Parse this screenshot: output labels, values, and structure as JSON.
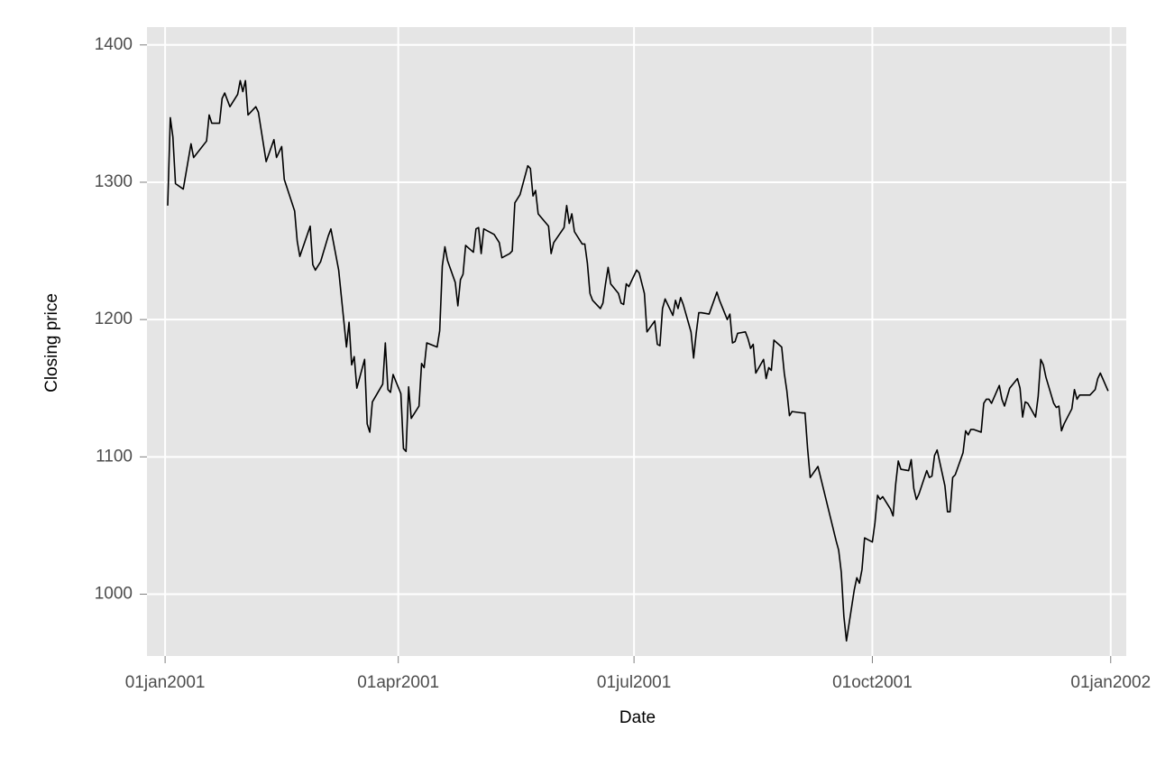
{
  "chart_data": {
    "type": "line",
    "xlabel": "Date",
    "ylabel": "Closing price",
    "color": "#000000",
    "grid": true,
    "xlim": [
      "2000-12-25",
      "2002-01-07"
    ],
    "ylim": [
      955,
      1413
    ],
    "xticks": [
      {
        "value": "2001-01-01",
        "label": "01jan2001"
      },
      {
        "value": "2001-04-01",
        "label": "01apr2001"
      },
      {
        "value": "2001-07-01",
        "label": "01jul2001"
      },
      {
        "value": "2001-10-01",
        "label": "01oct2001"
      },
      {
        "value": "2002-01-01",
        "label": "01jan2002"
      }
    ],
    "yticks": [
      1000,
      1100,
      1200,
      1300,
      1400
    ],
    "x": [
      "2001-01-02",
      "2001-01-03",
      "2001-01-04",
      "2001-01-05",
      "2001-01-08",
      "2001-01-11",
      "2001-01-12",
      "2001-01-17",
      "2001-01-18",
      "2001-01-19",
      "2001-01-22",
      "2001-01-23",
      "2001-01-24",
      "2001-01-26",
      "2001-01-29",
      "2001-01-30",
      "2001-01-31",
      "2001-02-01",
      "2001-02-02",
      "2001-02-05",
      "2001-02-06",
      "2001-02-09",
      "2001-02-12",
      "2001-02-13",
      "2001-02-15",
      "2001-02-16",
      "2001-02-20",
      "2001-02-21",
      "2001-02-22",
      "2001-02-26",
      "2001-02-27",
      "2001-02-28",
      "2001-03-02",
      "2001-03-05",
      "2001-03-06",
      "2001-03-09",
      "2001-03-12",
      "2001-03-13",
      "2001-03-14",
      "2001-03-15",
      "2001-03-16",
      "2001-03-19",
      "2001-03-20",
      "2001-03-21",
      "2001-03-22",
      "2001-03-26",
      "2001-03-27",
      "2001-03-28",
      "2001-03-29",
      "2001-03-30",
      "2001-04-02",
      "2001-04-03",
      "2001-04-04",
      "2001-04-05",
      "2001-04-06",
      "2001-04-09",
      "2001-04-10",
      "2001-04-11",
      "2001-04-12",
      "2001-04-16",
      "2001-04-17",
      "2001-04-18",
      "2001-04-19",
      "2001-04-20",
      "2001-04-23",
      "2001-04-24",
      "2001-04-25",
      "2001-04-26",
      "2001-04-27",
      "2001-04-30",
      "2001-05-01",
      "2001-05-02",
      "2001-05-03",
      "2001-05-04",
      "2001-05-08",
      "2001-05-10",
      "2001-05-11",
      "2001-05-14",
      "2001-05-15",
      "2001-05-16",
      "2001-05-18",
      "2001-05-21",
      "2001-05-22",
      "2001-05-23",
      "2001-05-24",
      "2001-05-25",
      "2001-05-29",
      "2001-05-30",
      "2001-05-31",
      "2001-06-04",
      "2001-06-05",
      "2001-06-06",
      "2001-06-07",
      "2001-06-08",
      "2001-06-11",
      "2001-06-12",
      "2001-06-13",
      "2001-06-14",
      "2001-06-15",
      "2001-06-18",
      "2001-06-19",
      "2001-06-20",
      "2001-06-21",
      "2001-06-22",
      "2001-06-25",
      "2001-06-26",
      "2001-06-27",
      "2001-06-28",
      "2001-06-29",
      "2001-07-02",
      "2001-07-03",
      "2001-07-05",
      "2001-07-06",
      "2001-07-09",
      "2001-07-10",
      "2001-07-11",
      "2001-07-12",
      "2001-07-13",
      "2001-07-16",
      "2001-07-17",
      "2001-07-18",
      "2001-07-19",
      "2001-07-20",
      "2001-07-23",
      "2001-07-24",
      "2001-07-25",
      "2001-07-26",
      "2001-07-27",
      "2001-07-30",
      "2001-08-02",
      "2001-08-03",
      "2001-08-06",
      "2001-08-07",
      "2001-08-08",
      "2001-08-09",
      "2001-08-10",
      "2001-08-13",
      "2001-08-14",
      "2001-08-15",
      "2001-08-16",
      "2001-08-17",
      "2001-08-20",
      "2001-08-21",
      "2001-08-22",
      "2001-08-23",
      "2001-08-24",
      "2001-08-27",
      "2001-08-28",
      "2001-08-29",
      "2001-08-30",
      "2001-08-31",
      "2001-09-04",
      "2001-09-05",
      "2001-09-06",
      "2001-09-07",
      "2001-09-10",
      "2001-09-17",
      "2001-09-18",
      "2001-09-19",
      "2001-09-20",
      "2001-09-21",
      "2001-09-24",
      "2001-09-25",
      "2001-09-26",
      "2001-09-27",
      "2001-09-28",
      "2001-10-01",
      "2001-10-02",
      "2001-10-03",
      "2001-10-04",
      "2001-10-05",
      "2001-10-08",
      "2001-10-09",
      "2001-10-10",
      "2001-10-11",
      "2001-10-12",
      "2001-10-15",
      "2001-10-16",
      "2001-10-17",
      "2001-10-18",
      "2001-10-19",
      "2001-10-22",
      "2001-10-23",
      "2001-10-24",
      "2001-10-25",
      "2001-10-26",
      "2001-10-29",
      "2001-10-30",
      "2001-10-31",
      "2001-11-01",
      "2001-11-02",
      "2001-11-05",
      "2001-11-06",
      "2001-11-07",
      "2001-11-08",
      "2001-11-09",
      "2001-11-12",
      "2001-11-13",
      "2001-11-14",
      "2001-11-15",
      "2001-11-16",
      "2001-11-19",
      "2001-11-20",
      "2001-11-21",
      "2001-11-23",
      "2001-11-26",
      "2001-11-27",
      "2001-11-28",
      "2001-11-29",
      "2001-11-30",
      "2001-12-03",
      "2001-12-04",
      "2001-12-05",
      "2001-12-06",
      "2001-12-07",
      "2001-12-10",
      "2001-12-11",
      "2001-12-12",
      "2001-12-13",
      "2001-12-14",
      "2001-12-17",
      "2001-12-18",
      "2001-12-19",
      "2001-12-20",
      "2001-12-21",
      "2001-12-24",
      "2001-12-26",
      "2001-12-27",
      "2001-12-28",
      "2001-12-31"
    ],
    "values": [
      1283,
      1347,
      1333,
      1299,
      1295,
      1328,
      1318,
      1330,
      1349,
      1343,
      1343,
      1361,
      1365,
      1355,
      1364,
      1374,
      1366,
      1374,
      1349,
      1355,
      1351,
      1315,
      1331,
      1318,
      1326,
      1302,
      1279,
      1257,
      1246,
      1268,
      1240,
      1236,
      1242,
      1261,
      1266,
      1236,
      1180,
      1198,
      1167,
      1173,
      1150,
      1171,
      1124,
      1118,
      1140,
      1153,
      1183,
      1149,
      1147,
      1160,
      1146,
      1106,
      1104,
      1151,
      1128,
      1137,
      1168,
      1165,
      1183,
      1180,
      1192,
      1239,
      1253,
      1243,
      1227,
      1210,
      1229,
      1233,
      1254,
      1249,
      1266,
      1267,
      1248,
      1266,
      1262,
      1256,
      1245,
      1248,
      1250,
      1285,
      1291,
      1312,
      1310,
      1290,
      1294,
      1277,
      1268,
      1248,
      1256,
      1267,
      1283,
      1270,
      1277,
      1264,
      1255,
      1255,
      1241,
      1219,
      1214,
      1208,
      1212,
      1226,
      1238,
      1226,
      1219,
      1212,
      1211,
      1226,
      1224,
      1236,
      1234,
      1219,
      1191,
      1199,
      1182,
      1181,
      1208,
      1215,
      1203,
      1214,
      1208,
      1216,
      1211,
      1191,
      1172,
      1190,
      1205,
      1205,
      1204,
      1220,
      1214,
      1200,
      1204,
      1183,
      1184,
      1190,
      1191,
      1186,
      1179,
      1182,
      1161,
      1171,
      1157,
      1165,
      1163,
      1185,
      1180,
      1161,
      1148,
      1130,
      1133,
      1132,
      1132,
      1106,
      1085,
      1093,
      1039,
      1032,
      1016,
      984,
      966,
      1003,
      1012,
      1008,
      1018,
      1041,
      1038,
      1052,
      1072,
      1069,
      1071,
      1062,
      1057,
      1080,
      1097,
      1091,
      1090,
      1098,
      1077,
      1069,
      1073,
      1090,
      1085,
      1086,
      1101,
      1105,
      1079,
      1060,
      1060,
      1085,
      1087,
      1103,
      1119,
      1116,
      1120,
      1120,
      1118,
      1139,
      1142,
      1142,
      1139,
      1152,
      1142,
      1137,
      1150,
      1157,
      1150,
      1129,
      1140,
      1139,
      1129,
      1144,
      1171,
      1167,
      1158,
      1139,
      1136,
      1137,
      1119,
      1124,
      1135,
      1149,
      1142,
      1145,
      1145,
      1145,
      1149,
      1157,
      1161,
      1148
    ]
  }
}
